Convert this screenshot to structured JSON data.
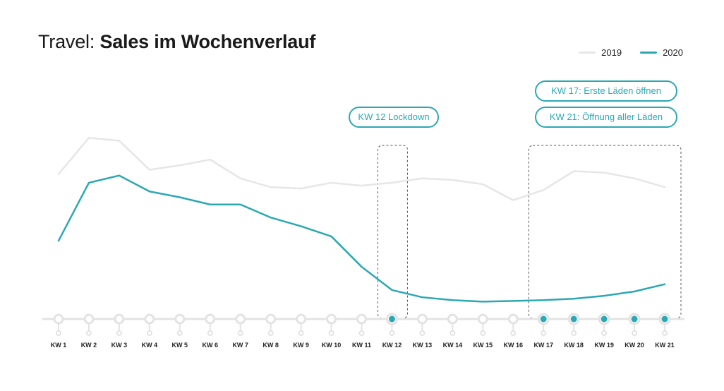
{
  "title": {
    "prefix": "Travel:",
    "main": "Sales im Wochenverlauf"
  },
  "legend": [
    {
      "label": "2019",
      "color": "#e6e6e6"
    },
    {
      "label": "2020",
      "color": "#2ba8b4"
    }
  ],
  "annotations": {
    "lockdown": "KW 12 Lockdown",
    "kw17": "KW 17: Erste Läden öffnen",
    "kw21": "KW 21: Öffnung aller Läden"
  },
  "colors": {
    "accent": "#2ba8b4",
    "series_2019": "#e6e6e6",
    "axis": "#e3e3e3",
    "box": "#555555"
  },
  "chart_data": {
    "type": "line",
    "categories": [
      "KW 1",
      "KW 2",
      "KW 3",
      "KW 4",
      "KW 5",
      "KW 6",
      "KW 7",
      "KW 8",
      "KW 9",
      "KW 10",
      "KW 11",
      "KW 12",
      "KW 13",
      "KW 14",
      "KW 15",
      "KW 16",
      "KW 17",
      "KW 18",
      "KW 19",
      "KW 20",
      "KW 21"
    ],
    "series": [
      {
        "name": "2019",
        "values": [
          100,
          125,
          123,
          103,
          106,
          110,
          97,
          91,
          90,
          94,
          92,
          94,
          97,
          96,
          93,
          82,
          89,
          102,
          101,
          97,
          91
        ]
      },
      {
        "name": "2020",
        "values": [
          54,
          94,
          99,
          88,
          84,
          79,
          79,
          70,
          64,
          57,
          36,
          20,
          15,
          13,
          12,
          12.5,
          13,
          14,
          16,
          19,
          24
        ]
      }
    ],
    "highlighted_categories": [
      "KW 12",
      "KW 17",
      "KW 18",
      "KW 19",
      "KW 20",
      "KW 21"
    ],
    "ylim": [
      0,
      130
    ],
    "grid": false,
    "legend_position": "top-right"
  }
}
